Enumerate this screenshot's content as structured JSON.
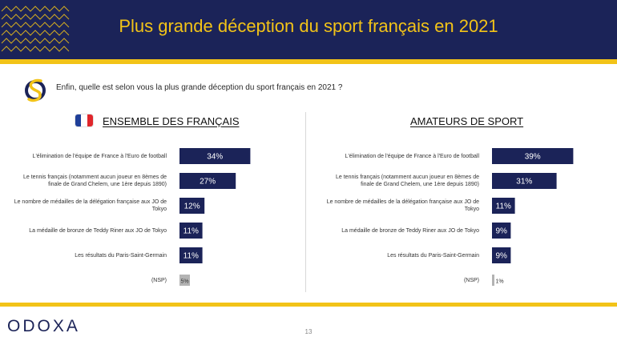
{
  "header": {
    "title": "Plus grande déception du sport français en 2021"
  },
  "question": "Enfin, quelle est selon vous la plus grande déception du sport français en 2021 ?",
  "colors": {
    "navy": "#1b2358",
    "gold": "#f2c318",
    "nsp": "#b3b3b3",
    "flag_blue": "#1f3f99",
    "flag_white": "#ffffff",
    "flag_red": "#e0262b"
  },
  "chart_data": [
    {
      "type": "bar",
      "title": "ENSEMBLE DES FRANÇAIS",
      "categories": [
        "L'élimination de l'équipe de France à l'Euro de football",
        "Le tennis français (notamment aucun joueur en 8èmes de finale de Grand Chelem, une 1ère depuis 1890)",
        "Le nombre de médailles de la délégation française aux JO de Tokyo",
        "La médaille de bronze de Teddy Riner aux JO de Tokyo",
        "Les résultats du Paris-Saint-Germain",
        "(NSP)"
      ],
      "values": [
        34,
        27,
        12,
        11,
        11,
        5
      ],
      "value_labels": [
        "34%",
        "27%",
        "12%",
        "11%",
        "11%",
        "5%"
      ],
      "unit": "%"
    },
    {
      "type": "bar",
      "title": "AMATEURS DE SPORT",
      "categories": [
        "L'élimination de l'équipe de France à l'Euro de football",
        "Le tennis français (notamment aucun joueur en 8èmes de finale de Grand Chelem, une 1ère depuis 1890)",
        "Le nombre de médailles de la délégation française aux JO de Tokyo",
        "La médaille de bronze de Teddy Riner aux JO de Tokyo",
        "Les résultats du Paris-Saint-Germain",
        "(NSP)"
      ],
      "values": [
        39,
        31,
        11,
        9,
        9,
        1
      ],
      "value_labels": [
        "39%",
        "31%",
        "11%",
        "9%",
        "9%",
        "1%"
      ],
      "unit": "%"
    }
  ],
  "footer": {
    "brand": "ODOXA",
    "page_number": "13"
  }
}
